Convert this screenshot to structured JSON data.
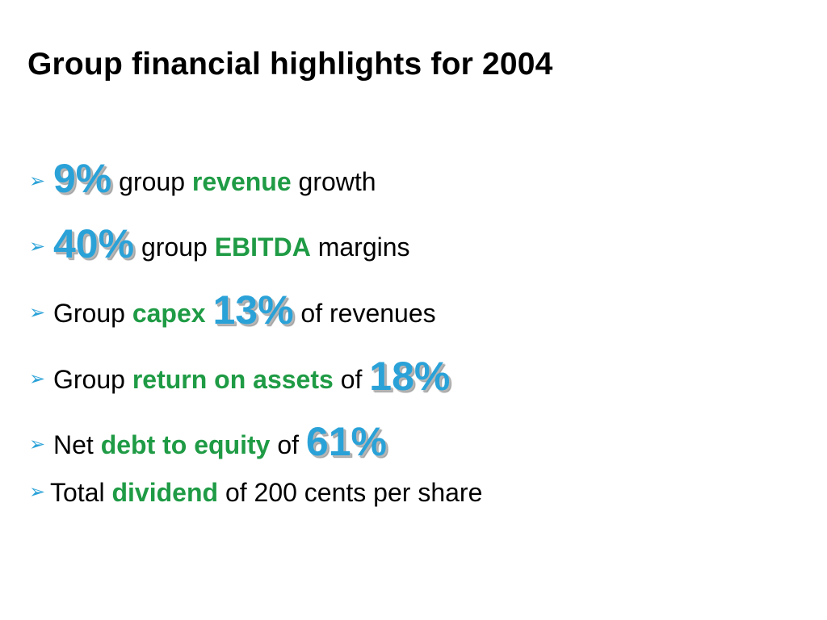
{
  "slide": {
    "title": "Group financial highlights for 2004",
    "colors": {
      "accent_blue": "#2aa2d8",
      "highlight_green": "#1f9b45",
      "text": "#000000"
    },
    "bullets": [
      {
        "marker": "arrow-bullet-icon",
        "parts": [
          "9%",
          " group ",
          "revenue",
          " growth"
        ]
      },
      {
        "marker": "arrow-bullet-icon",
        "parts": [
          "40%",
          " group ",
          "EBITDA",
          " margins"
        ]
      },
      {
        "marker": "arrow-bullet-icon",
        "parts": [
          "Group ",
          "capex",
          " ",
          "13%",
          " of revenues"
        ]
      },
      {
        "marker": "arrow-bullet-icon",
        "parts": [
          "Group ",
          "return on assets",
          " of ",
          "18%"
        ]
      },
      {
        "marker": "arrow-bullet-icon",
        "parts": [
          "Net ",
          "debt to equity",
          " of ",
          "61%"
        ]
      },
      {
        "marker": "arrow-bullet-icon",
        "parts": [
          "Total ",
          "dividend",
          " of 200 cents per share"
        ]
      }
    ]
  }
}
